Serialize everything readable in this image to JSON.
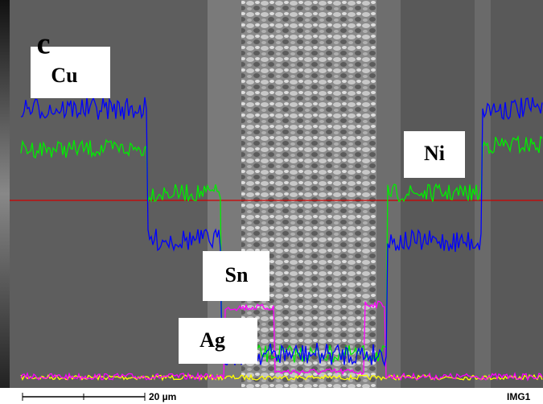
{
  "panel_label": "c",
  "labels": {
    "cu": "Cu",
    "ni": "Ni",
    "sn": "Sn",
    "ag": "Ag"
  },
  "scale_bar": "20 µm",
  "image_id": "IMG1"
}
